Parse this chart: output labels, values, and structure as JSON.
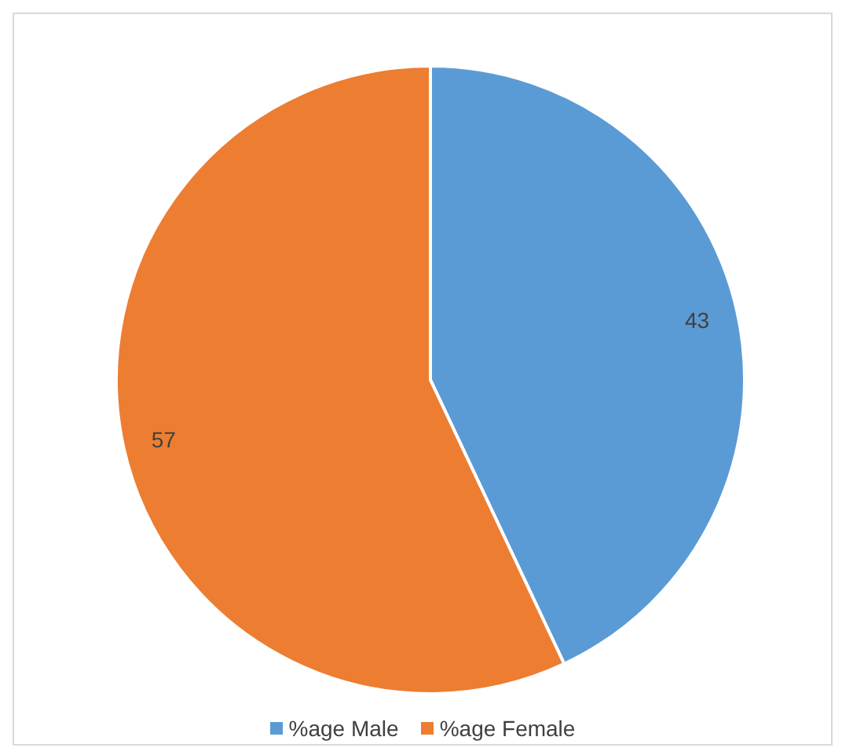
{
  "chart_data": {
    "type": "pie",
    "categories": [
      "%age Male",
      "%age Female"
    ],
    "values": [
      43,
      57
    ],
    "colors": [
      "#5b9bd5",
      "#ed7d31"
    ],
    "data_labels": true,
    "legend": "bottom"
  }
}
